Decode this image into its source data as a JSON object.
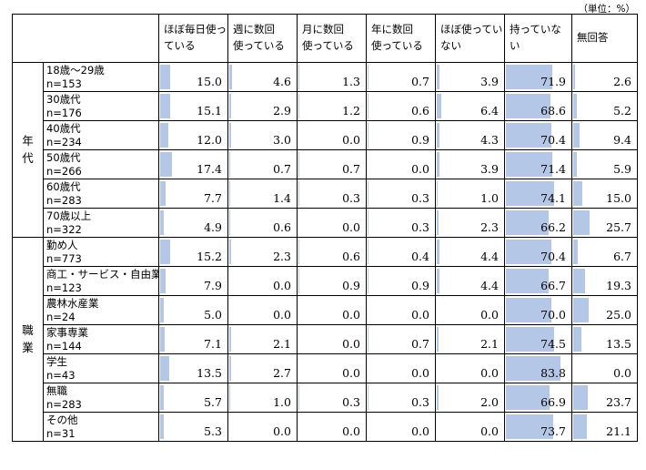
{
  "unit_label": "（単位：%）",
  "group_labels": [
    {
      "chars": [
        "年",
        "代"
      ],
      "span": 6
    },
    {
      "chars": [
        "職",
        "業"
      ],
      "span": 7
    }
  ],
  "chart_data": {
    "type": "table",
    "columns": [
      [
        "ほぼ毎日使っ",
        "ている"
      ],
      [
        "週に数回",
        "使っている"
      ],
      [
        "月に数回",
        "使っている"
      ],
      [
        "年に数回",
        "使っている"
      ],
      [
        "ほぼ使ってい",
        "ない"
      ],
      [
        "持っていない"
      ],
      [
        "無回答"
      ]
    ],
    "rows": [
      {
        "group": "年代",
        "label": "18歳～29歳",
        "n": "n=153",
        "values": [
          15.0,
          4.6,
          1.3,
          0.7,
          3.9,
          71.9,
          2.6
        ]
      },
      {
        "group": "年代",
        "label": "30歳代",
        "n": "n=176",
        "values": [
          15.1,
          2.9,
          1.2,
          0.6,
          6.4,
          68.6,
          5.2
        ]
      },
      {
        "group": "年代",
        "label": "40歳代",
        "n": "n=234",
        "values": [
          12.0,
          3.0,
          0.0,
          0.9,
          4.3,
          70.4,
          9.4
        ]
      },
      {
        "group": "年代",
        "label": "50歳代",
        "n": "n=266",
        "values": [
          17.4,
          0.7,
          0.7,
          0.0,
          3.9,
          71.4,
          5.9
        ]
      },
      {
        "group": "年代",
        "label": "60歳代",
        "n": "n=283",
        "values": [
          7.7,
          1.4,
          0.3,
          0.3,
          1.0,
          74.1,
          15.0
        ]
      },
      {
        "group": "年代",
        "label": "70歳以上",
        "n": "n=322",
        "values": [
          4.9,
          0.6,
          0.0,
          0.3,
          2.3,
          66.2,
          25.7
        ]
      },
      {
        "group": "職業",
        "label": "勤め人",
        "n": "n=773",
        "values": [
          15.2,
          2.3,
          0.6,
          0.4,
          4.4,
          70.4,
          6.7
        ]
      },
      {
        "group": "職業",
        "label": "商工・サービス・自由業",
        "n": "n=123",
        "values": [
          7.9,
          0.0,
          0.9,
          0.9,
          4.4,
          66.7,
          19.3
        ]
      },
      {
        "group": "職業",
        "label": "農林水産業",
        "n": "n=24",
        "values": [
          5.0,
          0.0,
          0.0,
          0.0,
          0.0,
          70.0,
          25.0
        ]
      },
      {
        "group": "職業",
        "label": "家事専業",
        "n": "n=144",
        "values": [
          7.1,
          2.1,
          0.0,
          0.7,
          2.1,
          74.5,
          13.5
        ]
      },
      {
        "group": "職業",
        "label": "学生",
        "n": "n=43",
        "values": [
          13.5,
          2.7,
          0.0,
          0.0,
          0.0,
          83.8,
          0.0
        ]
      },
      {
        "group": "職業",
        "label": "無職",
        "n": "n=283",
        "values": [
          5.7,
          1.0,
          0.3,
          0.3,
          2.0,
          66.9,
          23.7
        ]
      },
      {
        "group": "職業",
        "label": "その他",
        "n": "n=31",
        "values": [
          5.3,
          0.0,
          0.0,
          0.0,
          0.0,
          73.7,
          21.1
        ]
      }
    ],
    "bar_color": "#b4c7e7",
    "value_range": [
      0,
      100
    ]
  }
}
